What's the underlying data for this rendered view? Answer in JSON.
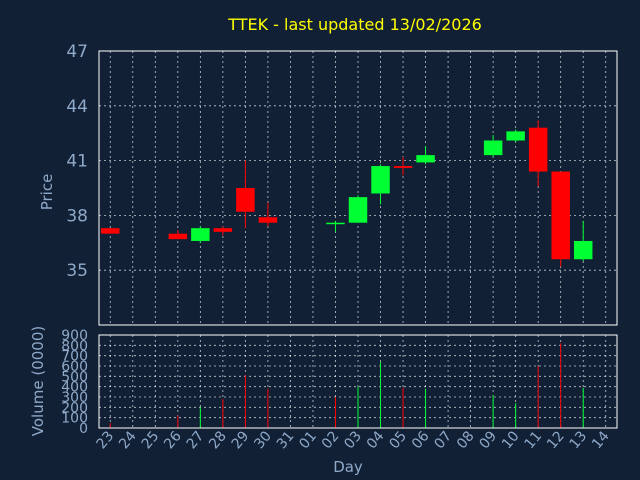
{
  "chart_data": [
    {
      "type": "candlestick",
      "title": "TTEK - last updated 13/02/2026",
      "ylabel": "Price",
      "ylim": [
        32,
        47
      ],
      "yticks": [
        35,
        38,
        41,
        44,
        47
      ],
      "grid": true,
      "colors": {
        "up": "#00ff33",
        "down": "#ff0000",
        "background": "#112035",
        "grid": "#ffffff",
        "text": "#8fa9c9",
        "title": "#ffff00"
      },
      "x_labels": [
        "23",
        "24",
        "25",
        "26",
        "27",
        "28",
        "29",
        "30",
        "31",
        "01",
        "02",
        "03",
        "04",
        "05",
        "06",
        "07",
        "08",
        "09",
        "10",
        "11",
        "12",
        "13",
        "14"
      ],
      "candles": [
        {
          "x": "23",
          "open": 37.3,
          "high": 37.3,
          "low": 37.0,
          "close": 37.0
        },
        {
          "x": "26",
          "open": 37.0,
          "high": 37.2,
          "low": 36.7,
          "close": 36.7
        },
        {
          "x": "27",
          "open": 36.6,
          "high": 37.4,
          "low": 36.5,
          "close": 37.3
        },
        {
          "x": "28",
          "open": 37.3,
          "high": 37.4,
          "low": 36.9,
          "close": 37.1
        },
        {
          "x": "29",
          "open": 39.5,
          "high": 41.0,
          "low": 37.3,
          "close": 38.2
        },
        {
          "x": "30",
          "open": 37.9,
          "high": 38.7,
          "low": 37.4,
          "close": 37.6
        },
        {
          "x": "02",
          "open": 37.6,
          "high": 37.7,
          "low": 37.1,
          "close": 37.6
        },
        {
          "x": "03",
          "open": 37.6,
          "high": 39.1,
          "low": 37.6,
          "close": 39.0
        },
        {
          "x": "04",
          "open": 39.2,
          "high": 40.8,
          "low": 38.6,
          "close": 40.7
        },
        {
          "x": "05",
          "open": 40.7,
          "high": 41.2,
          "low": 40.2,
          "close": 40.6
        },
        {
          "x": "06",
          "open": 40.9,
          "high": 41.8,
          "low": 40.8,
          "close": 41.3
        },
        {
          "x": "09",
          "open": 41.3,
          "high": 42.4,
          "low": 41.2,
          "close": 42.1
        },
        {
          "x": "10",
          "open": 42.1,
          "high": 42.7,
          "low": 42.0,
          "close": 42.6
        },
        {
          "x": "11",
          "open": 42.8,
          "high": 43.2,
          "low": 39.6,
          "close": 40.4
        },
        {
          "x": "12",
          "open": 40.4,
          "high": 40.4,
          "low": 35.2,
          "close": 35.6
        },
        {
          "x": "13",
          "open": 35.6,
          "high": 37.7,
          "low": 35.5,
          "close": 36.6
        }
      ]
    },
    {
      "type": "bar",
      "ylabel": "Volume (0000)",
      "xlabel": "Day",
      "ylim": [
        0,
        900
      ],
      "yticks": [
        0,
        100,
        200,
        300,
        400,
        500,
        600,
        700,
        800,
        900
      ],
      "grid": true,
      "categories": [
        "23",
        "26",
        "27",
        "28",
        "29",
        "30",
        "02",
        "03",
        "04",
        "05",
        "06",
        "09",
        "10",
        "11",
        "12",
        "13"
      ],
      "values": [
        50,
        120,
        200,
        280,
        510,
        380,
        300,
        400,
        640,
        390,
        380,
        320,
        240,
        600,
        820,
        390
      ],
      "direction": [
        "down",
        "down",
        "up",
        "down",
        "down",
        "down",
        "down",
        "up",
        "up",
        "down",
        "up",
        "up",
        "up",
        "down",
        "down",
        "up"
      ]
    }
  ]
}
